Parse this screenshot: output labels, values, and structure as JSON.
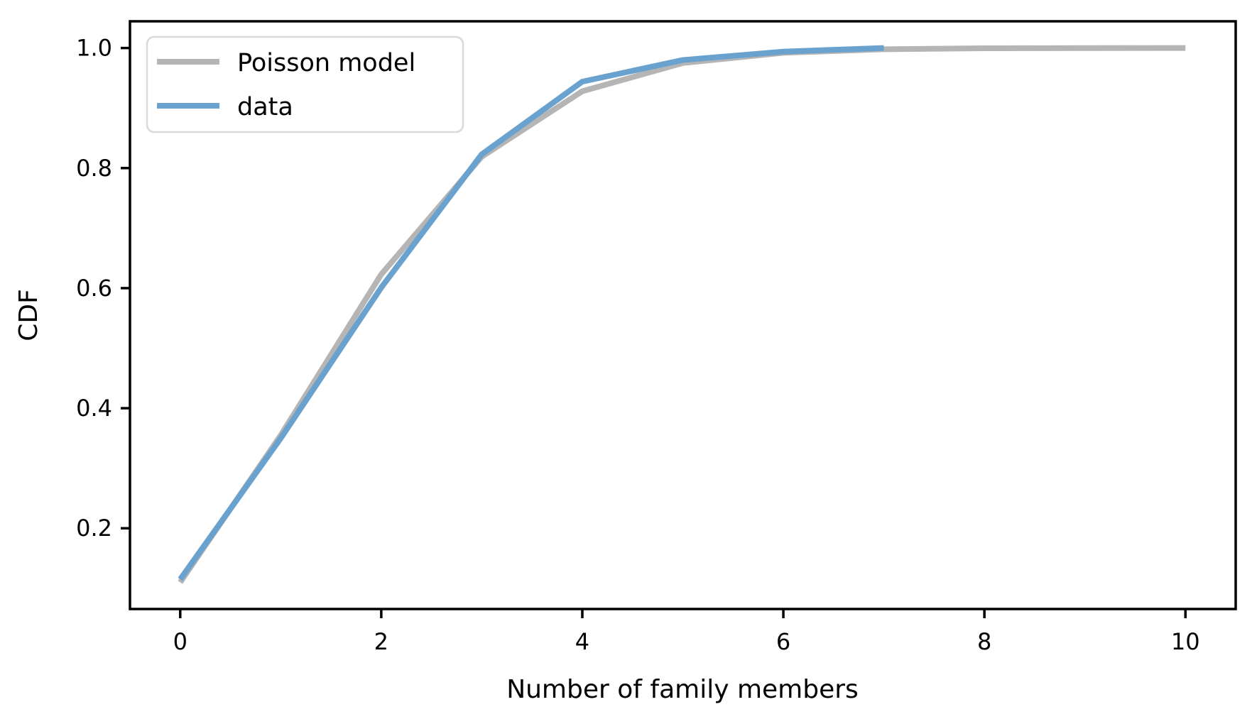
{
  "figure": {
    "background": "#ffffff",
    "spine_color": "#000000",
    "legend_border_color": "#d9d9d9",
    "legend_fill": "#ffffff"
  },
  "chart_data": {
    "type": "line",
    "title": "",
    "xlabel": "Number of family members",
    "ylabel": "CDF",
    "xlim": [
      -0.5,
      10.5
    ],
    "ylim": [
      0.0655,
      1.0445
    ],
    "xticks": [
      0,
      2,
      4,
      6,
      8,
      10
    ],
    "yticks": [
      0.2,
      0.4,
      0.6,
      0.8,
      1.0
    ],
    "grid": false,
    "legend_position": "upper left",
    "series": [
      {
        "name": "Poisson model",
        "color": "#b5b5b5",
        "x": [
          0,
          1,
          2,
          3,
          4,
          5,
          6,
          7,
          8,
          9,
          10
        ],
        "y": [
          0.11,
          0.355,
          0.623,
          0.819,
          0.928,
          0.975,
          0.992,
          0.998,
          0.9995,
          0.9999,
          1.0
        ]
      },
      {
        "name": "data",
        "color": "#6aa2cf",
        "x": [
          0,
          1,
          2,
          3,
          4,
          5,
          6,
          7
        ],
        "y": [
          0.115,
          0.35,
          0.601,
          0.823,
          0.944,
          0.98,
          0.994,
          1.0
        ]
      }
    ]
  }
}
